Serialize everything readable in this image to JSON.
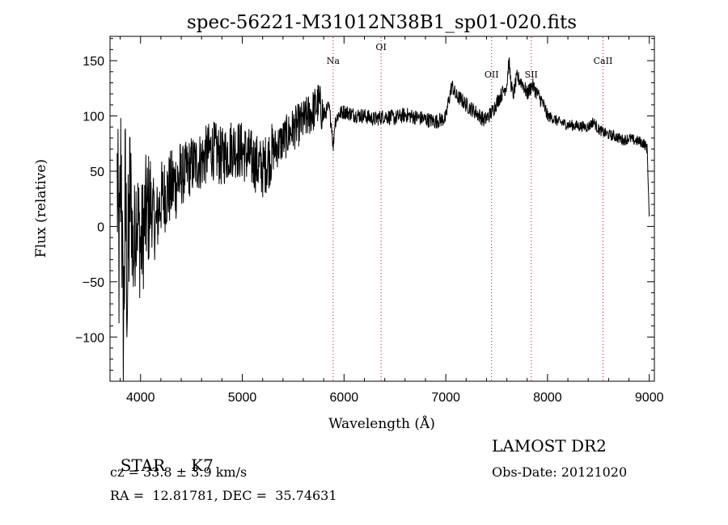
{
  "chart_data": {
    "type": "line",
    "title": "spec-56221-M31012N38B1_sp01-020.fits",
    "xlabel": "Wavelength (Å)",
    "ylabel": "Flux (relative)",
    "xlim": [
      3700,
      9050
    ],
    "ylim": [
      -140,
      172
    ],
    "xticks": [
      4000,
      5000,
      6000,
      7000,
      8000,
      9000
    ],
    "yticks": [
      -100,
      -50,
      0,
      50,
      100,
      150
    ],
    "grid": false,
    "line_color": "#000000",
    "line_marker_color": "#cc0000",
    "lines": [
      {
        "name": "Na",
        "wavelength": 5893
      },
      {
        "name": "OI",
        "wavelength": 6364
      },
      {
        "name": "OII",
        "wavelength": 7450
      },
      {
        "name": "SII",
        "wavelength": 7840
      },
      {
        "name": "CaII",
        "wavelength": 8545
      }
    ],
    "series": [
      {
        "values": [
          [
            3770,
            40
          ],
          [
            3790,
            -40
          ],
          [
            3810,
            70
          ],
          [
            3830,
            -120
          ],
          [
            3850,
            30
          ],
          [
            3870,
            -60
          ],
          [
            3900,
            40
          ],
          [
            3930,
            -30
          ],
          [
            3960,
            20
          ],
          [
            4000,
            -20
          ],
          [
            4050,
            10
          ],
          [
            4100,
            20
          ],
          [
            4150,
            0
          ],
          [
            4200,
            25
          ],
          [
            4250,
            30
          ],
          [
            4300,
            35
          ],
          [
            4400,
            45
          ],
          [
            4500,
            55
          ],
          [
            4600,
            60
          ],
          [
            4700,
            70
          ],
          [
            4800,
            62
          ],
          [
            4900,
            72
          ],
          [
            5000,
            68
          ],
          [
            5100,
            60
          ],
          [
            5200,
            52
          ],
          [
            5300,
            68
          ],
          [
            5400,
            78
          ],
          [
            5500,
            88
          ],
          [
            5600,
            95
          ],
          [
            5700,
            105
          ],
          [
            5750,
            112
          ],
          [
            5800,
            100
          ],
          [
            5850,
            108
          ],
          [
            5880,
            90
          ],
          [
            5893,
            70
          ],
          [
            5910,
            95
          ],
          [
            5950,
            102
          ],
          [
            6000,
            104
          ],
          [
            6100,
            101
          ],
          [
            6200,
            100
          ],
          [
            6300,
            97
          ],
          [
            6400,
            100
          ],
          [
            6500,
            98
          ],
          [
            6600,
            101
          ],
          [
            6700,
            99
          ],
          [
            6800,
            97
          ],
          [
            6900,
            95
          ],
          [
            7000,
            98
          ],
          [
            7020,
            110
          ],
          [
            7060,
            128
          ],
          [
            7100,
            118
          ],
          [
            7150,
            115
          ],
          [
            7200,
            110
          ],
          [
            7300,
            103
          ],
          [
            7380,
            96
          ],
          [
            7420,
            100
          ],
          [
            7450,
            103
          ],
          [
            7500,
            112
          ],
          [
            7550,
            120
          ],
          [
            7600,
            128
          ],
          [
            7620,
            150
          ],
          [
            7640,
            130
          ],
          [
            7660,
            118
          ],
          [
            7700,
            135
          ],
          [
            7750,
            130
          ],
          [
            7800,
            120
          ],
          [
            7850,
            128
          ],
          [
            7900,
            120
          ],
          [
            7950,
            112
          ],
          [
            8000,
            100
          ],
          [
            8050,
            98
          ],
          [
            8100,
            95
          ],
          [
            8200,
            92
          ],
          [
            8300,
            91
          ],
          [
            8400,
            90
          ],
          [
            8450,
            95
          ],
          [
            8500,
            88
          ],
          [
            8550,
            85
          ],
          [
            8600,
            83
          ],
          [
            8650,
            82
          ],
          [
            8700,
            80
          ],
          [
            8750,
            78
          ],
          [
            8800,
            80
          ],
          [
            8850,
            78
          ],
          [
            8900,
            77
          ],
          [
            8950,
            75
          ],
          [
            8980,
            70
          ],
          [
            9000,
            5
          ]
        ]
      }
    ]
  },
  "object": {
    "class": "STAR",
    "subclass": "K7",
    "survey": "LAMOST DR2",
    "cz_label": "cz = 33.8 ± 3.9 km/s",
    "obs_date": "Obs-Date: 20121020",
    "coords": "RA =  12.81781, DEC =  35.74631"
  }
}
